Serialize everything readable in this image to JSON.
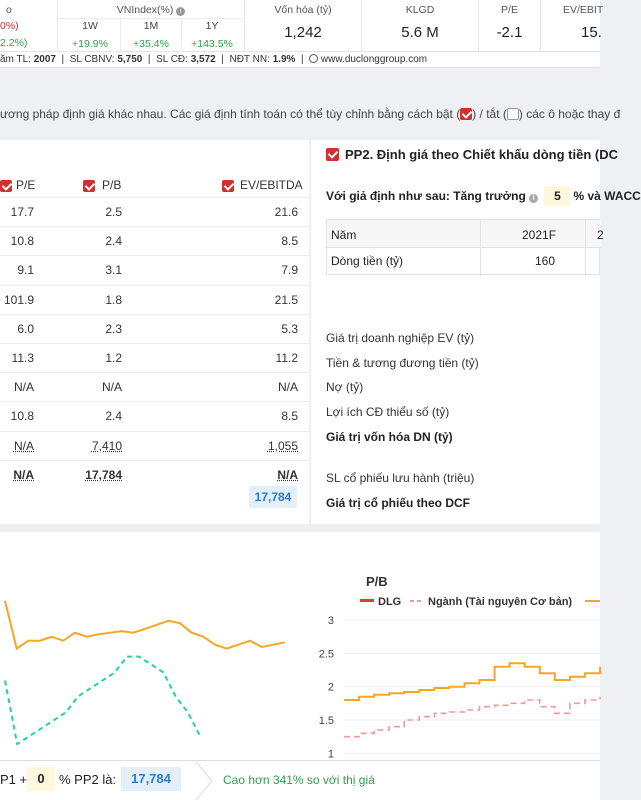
{
  "top": {
    "col0": {
      "label_partial": "o",
      "line1": "0%)",
      "line2": "2.2%)"
    },
    "vnindex": {
      "label": "VNIndex(%)",
      "periods": [
        {
          "label": "1W",
          "value": "+19.9%"
        },
        {
          "label": "1M",
          "value": "+35.4%"
        },
        {
          "label": "1Y",
          "value": "+143.5%"
        }
      ]
    },
    "von_hoa": {
      "label": "Vốn hóa (tỷ)",
      "value": "1,242"
    },
    "klgd": {
      "label": "KLGD",
      "value": "5.6 M"
    },
    "pe": {
      "label": "P/E",
      "value": "-2.1"
    },
    "ev": {
      "label": "EV/EBIT",
      "value": "15."
    }
  },
  "info_strip": {
    "nam_tl_label": "ăm TL:",
    "nam_tl": "2007",
    "cbnv_label": "SL CBNV:",
    "cbnv": "5,750",
    "cd_label": "SL CĐ:",
    "cd": "3,572",
    "ndt_label": "NĐT NN:",
    "ndt": "1.9%",
    "website": "www.duclonggroup.com"
  },
  "description": {
    "part1": "ương pháp định giá khác nhau. Các giá định tính toán có thể tùy chỉnh bằng cách bật (",
    "part2": ") / tắt (",
    "part3": ") các ô hoặc thay đ"
  },
  "left_table": {
    "headers": [
      "P/E",
      "P/B",
      "EV/EBITDA"
    ],
    "rows": [
      [
        "17.7",
        "2.5",
        "21.6"
      ],
      [
        "10.8",
        "2.4",
        "8.5"
      ],
      [
        "9.1",
        "3.1",
        "7.9"
      ],
      [
        "101.9",
        "1.8",
        "21.5"
      ],
      [
        "6.0",
        "2.3",
        "5.3"
      ],
      [
        "11.3",
        "1.2",
        "11.2"
      ],
      [
        "N/A",
        "N/A",
        "N/A"
      ],
      [
        "10.8",
        "2.4",
        "8.5"
      ],
      [
        "N/A",
        "7,410",
        "1,055"
      ],
      [
        "N/A",
        "17,784",
        "N/A"
      ]
    ],
    "total": "17,784"
  },
  "pp2": {
    "title": "PP2. Định giá theo Chiết khấu dòng tiền (DC",
    "cond_prefix": "Với giả định như sau: Tăng trưởng",
    "growth": "5",
    "cond_suffix": "% và WACC",
    "table": {
      "year_label": "Năm",
      "year_1": "2021F",
      "year_2_partial": "2",
      "cf_label": "Dòng tiền (tỷ)",
      "cf_1": "160"
    },
    "labels": [
      "Giá trị doanh nghiệp EV (tỷ)",
      "Tiền & tương đương tiền (tỷ)",
      "Nợ (tỷ)",
      "Lợi ích CĐ thiểu số (tỷ)",
      "Giá trị vốn hóa DN (tỷ)",
      "SL cổ phiếu lưu hành (triệu)",
      "Giá trị cổ phiếu theo DCF"
    ]
  },
  "chart_data": [
    {
      "type": "line",
      "title": "",
      "series": [
        {
          "values": [
            1.0,
            0.4,
            0.5,
            0.5,
            0.55,
            0.5,
            0.6,
            0.55,
            0.58,
            0.6,
            0.62,
            0.6,
            0.65,
            0.7,
            0.75,
            0.72,
            0.6,
            0.55,
            0.45,
            0.4,
            0.45,
            0.5,
            0.42,
            0.45,
            0.48
          ]
        },
        {
          "values": [
            0.0,
            -0.8,
            -0.7,
            -0.6,
            -0.5,
            -0.4,
            -0.2,
            -0.1,
            0.0,
            0.1,
            0.3,
            0.3,
            0.2,
            0.1,
            -0.2,
            -0.4,
            -0.7
          ]
        }
      ]
    },
    {
      "type": "line",
      "title": "P/B",
      "legend": [
        "DLG",
        "Ngành (Tài nguyên Cơ bản)"
      ],
      "y_ticks": [
        "3",
        "2.5",
        "2",
        "1.5",
        "1"
      ],
      "series": [
        {
          "name": "DLG",
          "values": [
            1.8,
            1.85,
            1.88,
            1.9,
            1.92,
            1.95,
            1.98,
            2.0,
            2.05,
            2.1,
            2.3,
            2.35,
            2.3,
            2.2,
            2.1,
            2.15,
            2.2,
            2.3
          ]
        },
        {
          "name": "Ngành (Tài nguyên Cơ bản)",
          "values": [
            1.25,
            1.3,
            1.35,
            1.4,
            1.5,
            1.55,
            1.6,
            1.62,
            1.65,
            1.7,
            1.72,
            1.75,
            1.8,
            1.7,
            1.6,
            1.75,
            1.8,
            1.85
          ]
        }
      ]
    }
  ],
  "bottom": {
    "pp1_label": "P1 +",
    "pp1_val": "0",
    "pp2_label": "% PP2 là:",
    "result": "17,784",
    "note": "Cao hơn 341% so với thị giá"
  },
  "colors": {
    "accent_red": "#d32f2f",
    "green": "#2e9e4f",
    "orange": "#f5a623",
    "teal": "#1fd69a",
    "blue": "#2a7bd2"
  }
}
